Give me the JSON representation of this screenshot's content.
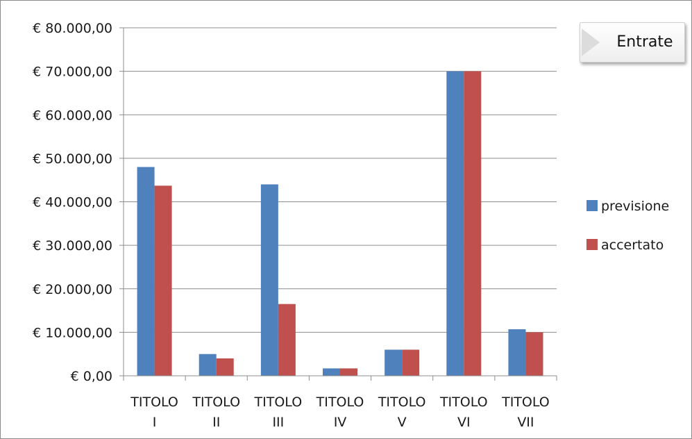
{
  "chart_data": {
    "type": "bar",
    "title": "Entrate",
    "categories": [
      [
        "TITOLO",
        "I"
      ],
      [
        "TITOLO",
        "II"
      ],
      [
        "TITOLO",
        "III"
      ],
      [
        "TITOLO",
        "IV"
      ],
      [
        "TITOLO",
        "V"
      ],
      [
        "TITOLO",
        "VI"
      ],
      [
        "TITOLO",
        "VII"
      ]
    ],
    "series": [
      {
        "name": "previsione",
        "color": "#4f81bd",
        "values": [
          48000,
          5000,
          44000,
          1700,
          6000,
          70000,
          10700
        ]
      },
      {
        "name": "accertato",
        "color": "#c0504d",
        "values": [
          43700,
          4000,
          16500,
          1700,
          6000,
          70000,
          10000
        ]
      }
    ],
    "ylim": [
      0,
      80000
    ],
    "yticks": [
      0,
      10000,
      20000,
      30000,
      40000,
      50000,
      60000,
      70000,
      80000
    ],
    "ytick_labels": [
      "€ 0,00",
      "€ 10.000,00",
      "€ 20.000,00",
      "€ 30.000,00",
      "€ 40.000,00",
      "€ 50.000,00",
      "€ 60.000,00",
      "€ 70.000,00",
      "€ 80.000,00"
    ],
    "xlabel": "",
    "ylabel": "",
    "grid": true,
    "legend_position": "right"
  }
}
